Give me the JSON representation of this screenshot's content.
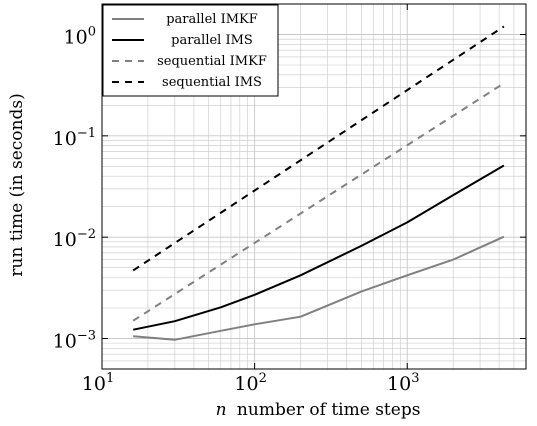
{
  "chart_data": {
    "type": "line",
    "title": "",
    "xlabel_var": "n",
    "xlabel": "number of time steps",
    "ylabel": "run time (in seconds)",
    "x_scale": "log",
    "y_scale": "log",
    "xlim": [
      10,
      6000
    ],
    "ylim": [
      0.0005,
      2.0
    ],
    "x_ticks": [
      {
        "base": "10",
        "exp": "1",
        "value": 10
      },
      {
        "base": "10",
        "exp": "2",
        "value": 100
      },
      {
        "base": "10",
        "exp": "3",
        "value": 1000
      }
    ],
    "y_ticks": [
      {
        "base": "10",
        "exp": "−3",
        "value": 0.001
      },
      {
        "base": "10",
        "exp": "−2",
        "value": 0.01
      },
      {
        "base": "10",
        "exp": "−1",
        "value": 0.1
      },
      {
        "base": "10",
        "exp": "0",
        "value": 1
      }
    ],
    "grid": true,
    "legend_position": "top-left",
    "series": [
      {
        "name": "parallel IMKF",
        "color": "#808080",
        "dash": "solid",
        "x": [
          16,
          30,
          60,
          100,
          200,
          500,
          1000,
          2000,
          4300
        ],
        "y": [
          0.00105,
          0.00097,
          0.00119,
          0.00138,
          0.00164,
          0.0029,
          0.0042,
          0.006,
          0.0101
        ]
      },
      {
        "name": "parallel IMS",
        "color": "#000000",
        "dash": "solid",
        "x": [
          16,
          30,
          60,
          100,
          200,
          500,
          1000,
          2000,
          4300
        ],
        "y": [
          0.00122,
          0.00148,
          0.00203,
          0.0027,
          0.0042,
          0.0082,
          0.014,
          0.026,
          0.051
        ]
      },
      {
        "name": "sequential IMKF",
        "color": "#808080",
        "dash": "dashed",
        "x": [
          16,
          4300
        ],
        "y": [
          0.0015,
          0.33
        ]
      },
      {
        "name": "sequential IMS",
        "color": "#000000",
        "dash": "dashed",
        "x": [
          16,
          4300
        ],
        "y": [
          0.0047,
          1.2
        ]
      }
    ]
  }
}
